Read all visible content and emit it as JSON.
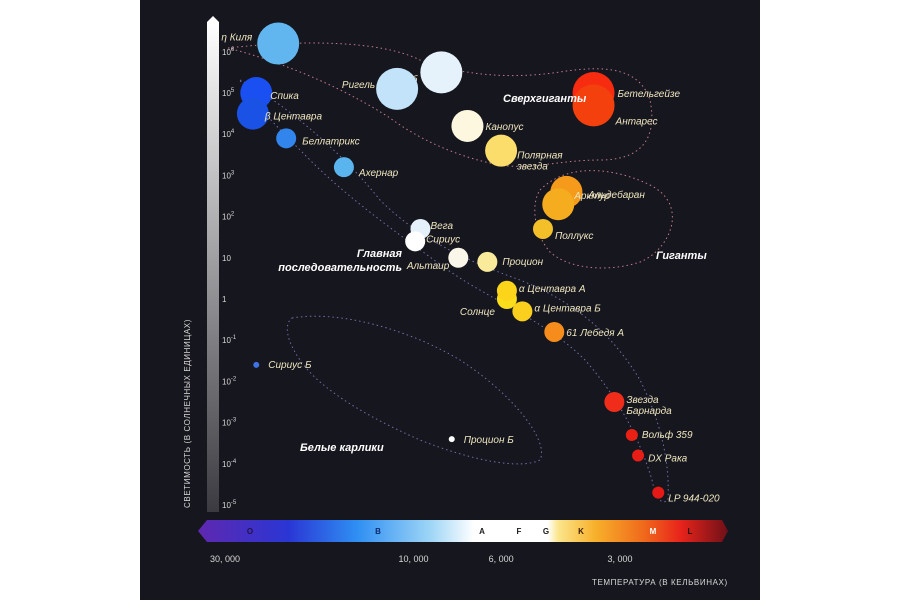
{
  "chart_data": {
    "type": "scatter",
    "ylabel": "СВЕТИМОСТЬ (В СОЛНЕЧНЫХ ЕДИНИЦАХ)",
    "xlabel": "ТЕМПЕРАТУРА (В КЕЛЬВИНАХ)",
    "y_scale": "log",
    "y_ticks": [
      {
        "base": "10",
        "exp": "6"
      },
      {
        "base": "10",
        "exp": "5"
      },
      {
        "base": "10",
        "exp": "4"
      },
      {
        "base": "10",
        "exp": "3"
      },
      {
        "base": "10",
        "exp": "2"
      },
      {
        "base": "10",
        "exp": ""
      },
      {
        "base": "1",
        "exp": ""
      },
      {
        "base": "10",
        "exp": "-1"
      },
      {
        "base": "10",
        "exp": "-2"
      },
      {
        "base": "10",
        "exp": "-3"
      },
      {
        "base": "10",
        "exp": "-4"
      },
      {
        "base": "10",
        "exp": "-5"
      }
    ],
    "x_ticks": [
      "30, 000",
      "10, 000",
      "6, 000",
      "3, 000"
    ],
    "spectral_classes": [
      "O",
      "B",
      "A",
      "F",
      "G",
      "K",
      "M",
      "L"
    ],
    "groups": [
      {
        "label": "Сверхгиганты"
      },
      {
        "label": "Гиганты"
      },
      {
        "label": "Главная последовательность"
      },
      {
        "label": "Белые карлики"
      }
    ],
    "stars": [
      {
        "name": "η Киля",
        "temp": 22000,
        "lum_log": 6.2,
        "color": "#62b6f0",
        "size": "large"
      },
      {
        "name": "Денеб",
        "temp": 8500,
        "lum_log": 5.5,
        "color": "#e6f2fb",
        "size": "large"
      },
      {
        "name": "Ригель",
        "temp": 11000,
        "lum_log": 5.1,
        "color": "#c3e3fa",
        "size": "large"
      },
      {
        "name": "Спика",
        "temp": 25000,
        "lum_log": 5.0,
        "color": "#1a4ff2",
        "size": "medium"
      },
      {
        "name": "β Центавра",
        "temp": 25500,
        "lum_log": 4.5,
        "color": "#1a52e6",
        "size": "medium"
      },
      {
        "name": "Беллатрикс",
        "temp": 21000,
        "lum_log": 3.9,
        "color": "#3185ec",
        "size": "small"
      },
      {
        "name": "Ахернар",
        "temp": 15000,
        "lum_log": 3.2,
        "color": "#5ab5ef",
        "size": "small"
      },
      {
        "name": "Канопус",
        "temp": 7300,
        "lum_log": 4.2,
        "color": "#fcf7de",
        "size": "medium"
      },
      {
        "name": "Полярная звезда",
        "temp": 6000,
        "lum_log": 3.6,
        "color": "#fadd6a",
        "size": "medium"
      },
      {
        "name": "Бетельгейзе",
        "temp": 3500,
        "lum_log": 5.0,
        "color": "#f62b10",
        "size": "large"
      },
      {
        "name": "Антарес",
        "temp": 3500,
        "lum_log": 4.7,
        "color": "#f4400d",
        "size": "large"
      },
      {
        "name": "Альдебаран",
        "temp": 4100,
        "lum_log": 2.6,
        "color": "#f59a1a",
        "size": "medium"
      },
      {
        "name": "Арктур",
        "temp": 4300,
        "lum_log": 2.3,
        "color": "#f5ac1e",
        "size": "medium"
      },
      {
        "name": "Поллукс",
        "temp": 4700,
        "lum_log": 1.7,
        "color": "#f3c02a",
        "size": "small"
      },
      {
        "name": "Вега",
        "temp": 9600,
        "lum_log": 1.7,
        "color": "#e4f1fb",
        "size": "small"
      },
      {
        "name": "Сириус",
        "temp": 9900,
        "lum_log": 1.4,
        "color": "#ffffff",
        "size": "small"
      },
      {
        "name": "Альтаир",
        "temp": 7700,
        "lum_log": 1.0,
        "color": "#fbf6ea",
        "size": "small"
      },
      {
        "name": "Процион",
        "temp": 6500,
        "lum_log": 0.9,
        "color": "#faeb9a",
        "size": "small"
      },
      {
        "name": "Солнце",
        "temp": 5800,
        "lum_log": 0.0,
        "color": "#fade1c",
        "size": "small"
      },
      {
        "name": "α Центавра А",
        "temp": 5800,
        "lum_log": 0.2,
        "color": "#fcd41a",
        "size": "small"
      },
      {
        "name": "α Центавра Б",
        "temp": 5300,
        "lum_log": -0.3,
        "color": "#fbcf1e",
        "size": "small"
      },
      {
        "name": "61 Лебедя А",
        "temp": 4400,
        "lum_log": -0.8,
        "color": "#f58c1b",
        "size": "small"
      },
      {
        "name": "Звезда Барнарда",
        "temp": 3100,
        "lum_log": -2.5,
        "color": "#ef2d1a",
        "size": "small"
      },
      {
        "name": "Вольф 359",
        "temp": 2800,
        "lum_log": -3.3,
        "color": "#e92115",
        "size": "tiny"
      },
      {
        "name": "DX Рака",
        "temp": 2700,
        "lum_log": -3.8,
        "color": "#e81d15",
        "size": "tiny"
      },
      {
        "name": "LP 944-020",
        "temp": 2400,
        "lum_log": -4.7,
        "color": "#e51a16",
        "size": "tiny"
      },
      {
        "name": "Сириус Б",
        "temp": 25000,
        "lum_log": -1.6,
        "color": "#3f72e6",
        "size": "dot"
      },
      {
        "name": "Процион Б",
        "temp": 8000,
        "lum_log": -3.4,
        "color": "#ffffff",
        "size": "dot"
      }
    ]
  },
  "colors": {
    "background": "#16161e",
    "o_class": "#5f28b0",
    "b_class": "#2f8ff3",
    "a_class": "#ffffff",
    "g_class": "#f4c52c",
    "m_class": "#e8241b",
    "l_class": "#6e1018"
  }
}
